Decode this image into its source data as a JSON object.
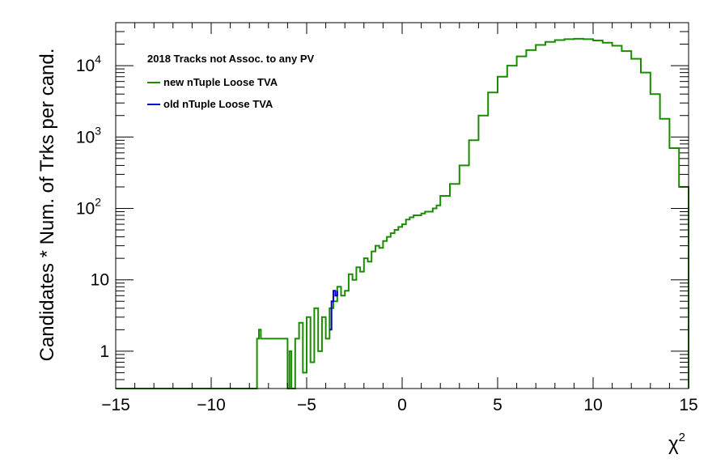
{
  "chart_data": {
    "type": "line",
    "title": "",
    "xlabel": "χ",
    "xlabel_superscript": "2",
    "ylabel": "Candidates * Num. of Trks per cand.",
    "xlim": [
      -15,
      15
    ],
    "ylim": [
      0.3,
      40000
    ],
    "y_scale": "log",
    "grid": false,
    "legend_position": "top-left",
    "legend_title": "2018 Tracks not Assoc. to any PV",
    "x_ticks": [
      {
        "value": -15,
        "label": "−15"
      },
      {
        "value": -10,
        "label": "−10"
      },
      {
        "value": -5,
        "label": "−5"
      },
      {
        "value": 0,
        "label": "0"
      },
      {
        "value": 5,
        "label": "5"
      },
      {
        "value": 10,
        "label": "10"
      },
      {
        "value": 15,
        "label": "15"
      }
    ],
    "y_ticks": [
      {
        "value": 1,
        "label": "1",
        "sup": ""
      },
      {
        "value": 10,
        "label": "10",
        "sup": ""
      },
      {
        "value": 100,
        "label": "10",
        "sup": "2"
      },
      {
        "value": 1000,
        "label": "10",
        "sup": "3"
      },
      {
        "value": 10000,
        "label": "10",
        "sup": "4"
      }
    ],
    "series": [
      {
        "name": "old nTuple Loose TVA",
        "color": "#0000cc",
        "x": [
          -3.8,
          -3.7,
          -3.6,
          -3.5,
          -3.4
        ],
        "y": [
          2,
          5,
          7,
          6,
          7
        ]
      },
      {
        "name": "new nTuple Loose TVA",
        "color": "#1a8c00",
        "x": [
          -15,
          -8,
          -7.6,
          -7.5,
          -7.4,
          -6,
          -5.9,
          -5.8,
          -5.6,
          -5.4,
          -5.2,
          -5.0,
          -4.8,
          -4.6,
          -4.4,
          -4.2,
          -4.0,
          -3.8,
          -3.6,
          -3.4,
          -3.2,
          -3.0,
          -2.8,
          -2.6,
          -2.4,
          -2.2,
          -2.0,
          -1.8,
          -1.6,
          -1.4,
          -1.2,
          -1.0,
          -0.8,
          -0.6,
          -0.4,
          -0.2,
          0.0,
          0.2,
          0.4,
          0.6,
          0.8,
          1.0,
          1.2,
          1.4,
          1.6,
          1.8,
          2.0,
          2.5,
          3.0,
          3.5,
          4.0,
          4.5,
          5.0,
          5.5,
          6.0,
          6.5,
          7.0,
          7.5,
          8.0,
          8.5,
          9.0,
          9.5,
          10.0,
          10.5,
          11.0,
          11.5,
          12.0,
          12.5,
          13.0,
          13.5,
          14.0,
          14.5,
          15.0
        ],
        "y": [
          0.3,
          0.3,
          1.5,
          2,
          1.5,
          0.3,
          1,
          0.3,
          1.5,
          2.5,
          0.5,
          3,
          0.7,
          4,
          1,
          3,
          1.5,
          4,
          5,
          8,
          6,
          7,
          12,
          10,
          15,
          13,
          20,
          18,
          25,
          30,
          28,
          35,
          40,
          45,
          50,
          55,
          60,
          70,
          75,
          80,
          80,
          85,
          90,
          90,
          100,
          110,
          150,
          220,
          400,
          900,
          2000,
          4200,
          7000,
          10000,
          13500,
          16500,
          19500,
          21500,
          22800,
          23500,
          23800,
          23500,
          22500,
          21000,
          19000,
          16000,
          12500,
          8000,
          4000,
          1800,
          700,
          200,
          0.3
        ]
      }
    ]
  }
}
